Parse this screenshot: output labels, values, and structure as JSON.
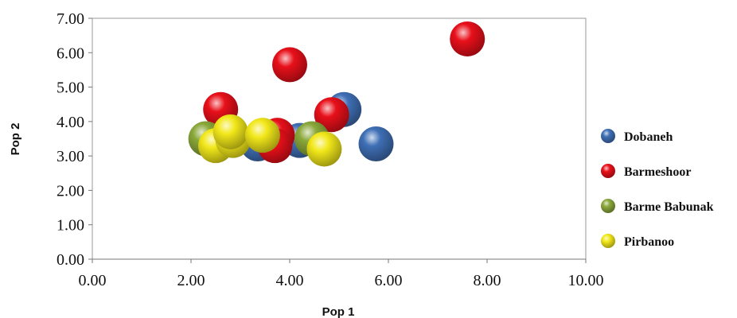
{
  "chart_data": {
    "type": "scatter",
    "title": "",
    "xlabel": "Pop 1",
    "ylabel": "Pop 2",
    "xlim": [
      0,
      10
    ],
    "ylim": [
      0,
      7
    ],
    "x_ticks": [
      "0.00",
      "2.00",
      "4.00",
      "6.00",
      "8.00",
      "10.00"
    ],
    "y_ticks": [
      "0.00",
      "1.00",
      "2.00",
      "3.00",
      "4.00",
      "5.00",
      "6.00",
      "7.00"
    ],
    "grid": false,
    "legend_position": "right",
    "series": [
      {
        "name": "Dobaneh",
        "color": "#3f6fb5",
        "points": [
          {
            "x": 5.1,
            "y": 4.35
          },
          {
            "x": 5.75,
            "y": 3.35
          },
          {
            "x": 3.35,
            "y": 3.35
          },
          {
            "x": 4.2,
            "y": 3.45
          }
        ]
      },
      {
        "name": "Barmeshoor",
        "color": "#e8101a",
        "points": [
          {
            "x": 7.6,
            "y": 6.4
          },
          {
            "x": 4.0,
            "y": 5.65
          },
          {
            "x": 2.6,
            "y": 4.35
          },
          {
            "x": 4.85,
            "y": 4.2
          },
          {
            "x": 3.75,
            "y": 3.6
          },
          {
            "x": 3.7,
            "y": 3.3
          }
        ]
      },
      {
        "name": "Barme Babunak",
        "color": "#8aa83a",
        "points": [
          {
            "x": 2.3,
            "y": 3.5
          },
          {
            "x": 4.45,
            "y": 3.5
          }
        ]
      },
      {
        "name": "Pirbanoo",
        "color": "#f2e81a",
        "points": [
          {
            "x": 2.5,
            "y": 3.3
          },
          {
            "x": 2.85,
            "y": 3.45
          },
          {
            "x": 2.8,
            "y": 3.7
          },
          {
            "x": 3.45,
            "y": 3.6
          },
          {
            "x": 4.7,
            "y": 3.2
          }
        ]
      }
    ]
  }
}
